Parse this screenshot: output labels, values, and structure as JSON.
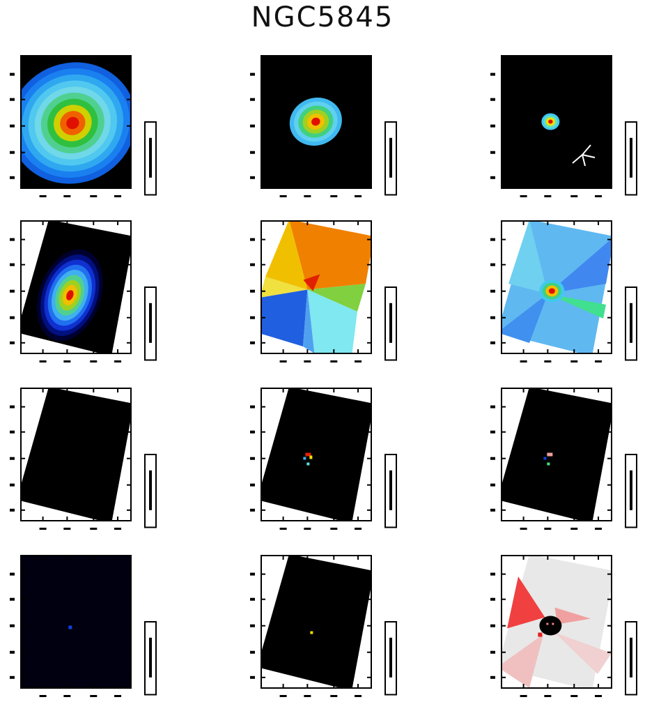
{
  "figure_title": "NGC5845",
  "chart_data": [
    {
      "type": "heatmap",
      "panel": "flux-3-6um",
      "title": "",
      "colormap": "blue-green-red",
      "frame_color": "#000000",
      "background": "#000000"
    },
    {
      "type": "heatmap",
      "panel": "flux-4-5um",
      "title": "",
      "colormap": "blue-green-red",
      "frame_color": "#000000",
      "background": "#000000"
    },
    {
      "type": "heatmap",
      "panel": "flux-ratio",
      "title": "",
      "colormap": "blue-green-red",
      "frame_color": "#000000",
      "background": "#000000",
      "compass": true
    },
    {
      "type": "heatmap",
      "panel": "stellar-mass",
      "title": "",
      "colormap": "blue-green-red",
      "background": "#000000"
    },
    {
      "type": "heatmap",
      "panel": "velocity",
      "title": "",
      "colormap": "blue-orange-red"
    },
    {
      "type": "heatmap",
      "panel": "dispersion",
      "title": "",
      "colormap": "blue-green-red"
    },
    {
      "type": "heatmap",
      "panel": "residual-1",
      "title": "",
      "colormap": "black"
    },
    {
      "type": "heatmap",
      "panel": "residual-2",
      "title": "",
      "colormap": "black"
    },
    {
      "type": "heatmap",
      "panel": "residual-3",
      "title": "",
      "colormap": "black"
    },
    {
      "type": "heatmap",
      "panel": "ratio-map",
      "title": "",
      "colormap": "black"
    },
    {
      "type": "heatmap",
      "panel": "metallicity",
      "title": "",
      "colormap": "black"
    },
    {
      "type": "heatmap",
      "panel": "age-map",
      "title": "",
      "colormap": "red-grey"
    }
  ]
}
